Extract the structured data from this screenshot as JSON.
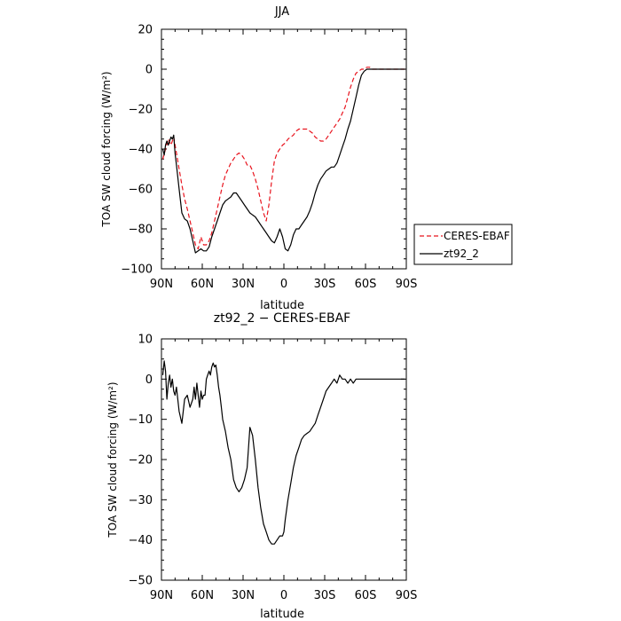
{
  "chart_data": [
    {
      "type": "line",
      "title": "JJA",
      "xlabel": "latitude",
      "ylabel": "TOA SW cloud forcing (W/m²)",
      "xlim": [
        90,
        -90
      ],
      "ylim": [
        -100,
        20
      ],
      "x_ticks": [
        90,
        60,
        30,
        0,
        -30,
        -60,
        -90
      ],
      "x_tick_labels": [
        "90N",
        "60N",
        "30N",
        "0",
        "30S",
        "60S",
        "90S"
      ],
      "y_ticks": [
        20,
        0,
        -20,
        -40,
        -60,
        -80,
        -100
      ],
      "y_tick_labels": [
        "20",
        "0",
        "−20",
        "−40",
        "−60",
        "−80",
        "−100"
      ],
      "legend_position": "right",
      "series": [
        {
          "name": "CERES-EBAF",
          "color": "#e8141e",
          "dash": "dashed",
          "x": [
            89,
            87,
            85,
            83,
            81,
            79,
            77,
            75,
            73,
            71,
            69,
            67,
            65,
            63,
            61,
            59,
            57,
            55,
            53,
            51,
            49,
            47,
            45,
            43,
            41,
            39,
            37,
            35,
            33,
            31,
            29,
            27,
            25,
            23,
            21,
            19,
            17,
            15,
            13,
            11,
            9,
            7,
            5,
            3,
            1,
            -1,
            -3,
            -5,
            -7,
            -9,
            -11,
            -13,
            -15,
            -17,
            -19,
            -21,
            -23,
            -25,
            -27,
            -29,
            -31,
            -33,
            -35,
            -37,
            -39,
            -41,
            -43,
            -45,
            -47,
            -49,
            -51,
            -53,
            -55,
            -57,
            -59,
            -61,
            -63,
            -65,
            -67,
            -69,
            -71,
            -73,
            -75,
            -77,
            -79,
            -81,
            -83,
            -85,
            -87,
            -89
          ],
          "y": [
            -45,
            -40,
            -35,
            -38,
            -34,
            -42,
            -50,
            -58,
            -65,
            -70,
            -76,
            -82,
            -88,
            -90,
            -84,
            -88,
            -88,
            -86,
            -82,
            -76,
            -70,
            -64,
            -58,
            -53,
            -50,
            -47,
            -45,
            -43,
            -42,
            -43,
            -45,
            -48,
            -48,
            -51,
            -55,
            -60,
            -66,
            -72,
            -76,
            -68,
            -56,
            -46,
            -42,
            -40,
            -38,
            -37,
            -35,
            -34,
            -33,
            -31,
            -30,
            -30,
            -30,
            -30,
            -31,
            -32,
            -34,
            -35,
            -36,
            -36,
            -35,
            -33,
            -31,
            -29,
            -27,
            -25,
            -22,
            -19,
            -14,
            -9,
            -5,
            -2,
            -1,
            0,
            0,
            1,
            1,
            0,
            0,
            0,
            0,
            0,
            0,
            0,
            0,
            0,
            0,
            0,
            0,
            0
          ]
        },
        {
          "name": "zt92_2",
          "color": "#000000",
          "dash": "solid",
          "x": [
            89,
            88,
            87,
            86,
            85,
            84,
            83,
            82,
            81,
            80,
            79,
            77,
            75,
            73,
            71,
            69,
            67,
            65,
            63,
            61,
            59,
            57,
            55,
            53,
            51,
            49,
            47,
            45,
            43,
            41,
            39,
            37,
            35,
            33,
            31,
            29,
            27,
            25,
            23,
            21,
            19,
            17,
            15,
            13,
            11,
            9,
            7,
            5,
            3,
            1,
            -1,
            -3,
            -5,
            -7,
            -9,
            -11,
            -13,
            -15,
            -17,
            -19,
            -21,
            -23,
            -25,
            -27,
            -29,
            -31,
            -33,
            -35,
            -37,
            -39,
            -41,
            -43,
            -45,
            -47,
            -49,
            -51,
            -53,
            -55,
            -57,
            -59,
            -61,
            -63,
            -65,
            -67,
            -69,
            -71,
            -73,
            -75,
            -77,
            -79,
            -81,
            -83,
            -85,
            -87,
            -89
          ],
          "y": [
            -40,
            -43,
            -38,
            -36,
            -38,
            -36,
            -34,
            -35,
            -33,
            -42,
            -48,
            -60,
            -72,
            -75,
            -76,
            -80,
            -86,
            -92,
            -91,
            -90,
            -91,
            -91,
            -89,
            -84,
            -80,
            -76,
            -72,
            -68,
            -66,
            -65,
            -64,
            -62,
            -62,
            -64,
            -66,
            -68,
            -70,
            -72,
            -73,
            -74,
            -76,
            -78,
            -80,
            -82,
            -84,
            -86,
            -87,
            -84,
            -80,
            -84,
            -90,
            -91,
            -88,
            -83,
            -80,
            -80,
            -78,
            -76,
            -74,
            -71,
            -67,
            -62,
            -58,
            -55,
            -53,
            -51,
            -50,
            -49,
            -49,
            -47,
            -43,
            -39,
            -35,
            -30,
            -26,
            -20,
            -14,
            -8,
            -3,
            -1,
            0,
            0,
            0,
            0,
            0,
            0,
            0,
            0,
            0,
            0,
            0,
            0,
            0,
            0,
            0
          ]
        }
      ]
    },
    {
      "type": "line",
      "title": "zt92_2 − CERES-EBAF",
      "xlabel": "latitude",
      "ylabel": "TOA SW cloud forcing (W/m²)",
      "xlim": [
        90,
        -90
      ],
      "ylim": [
        -50,
        10
      ],
      "x_ticks": [
        90,
        60,
        30,
        0,
        -30,
        -60,
        -90
      ],
      "x_tick_labels": [
        "90N",
        "60N",
        "30N",
        "0",
        "30S",
        "60S",
        "90S"
      ],
      "y_ticks": [
        10,
        0,
        -10,
        -20,
        -30,
        -40,
        -50
      ],
      "y_tick_labels": [
        "10",
        "0",
        "−10",
        "−20",
        "−30",
        "−40",
        "−50"
      ],
      "series": [
        {
          "name": "",
          "color": "#000000",
          "dash": "solid",
          "x": [
            89,
            88,
            87,
            86,
            85,
            84,
            83,
            82,
            81,
            80,
            79,
            77,
            75,
            73,
            71,
            69,
            67,
            66,
            65,
            64,
            63,
            62,
            61,
            60,
            59,
            58,
            57,
            56,
            55,
            54,
            53,
            52,
            51,
            50,
            49,
            48,
            47,
            46,
            45,
            43,
            41,
            39,
            37,
            35,
            33,
            31,
            29,
            27,
            25,
            23,
            21,
            19,
            17,
            15,
            13,
            11,
            9,
            7,
            5,
            3,
            1,
            0,
            -1,
            -3,
            -5,
            -7,
            -9,
            -11,
            -13,
            -15,
            -17,
            -19,
            -21,
            -23,
            -25,
            -27,
            -29,
            -31,
            -33,
            -35,
            -37,
            -39,
            -41,
            -43,
            -45,
            -47,
            -49,
            -51,
            -53,
            -55,
            -57,
            -59,
            -61,
            -63,
            -65,
            -67,
            -69,
            -71,
            -73,
            -75,
            -77,
            -79,
            -81,
            -83,
            -85,
            -87,
            -89
          ],
          "y": [
            1,
            4.5,
            2,
            -5,
            -1,
            1,
            -2,
            0,
            -3,
            -4,
            -2,
            -8,
            -11,
            -5,
            -4,
            -7,
            -5,
            -2,
            -5,
            -1,
            -4,
            -7,
            -3,
            -5,
            -4,
            -4,
            0,
            1,
            2,
            1,
            3,
            4,
            3,
            3.5,
            1,
            -2,
            -4,
            -7,
            -10,
            -13,
            -17,
            -20,
            -25,
            -27,
            -28,
            -27,
            -25,
            -22,
            -12,
            -14,
            -20,
            -27,
            -32,
            -36,
            -38,
            -40,
            -41,
            -41,
            -40,
            -39,
            -39,
            -38,
            -35,
            -30,
            -26,
            -22,
            -19,
            -17,
            -15,
            -14,
            -13.5,
            -13,
            -12,
            -11,
            -9,
            -7,
            -5,
            -3,
            -2,
            -1,
            0,
            -1,
            1,
            0,
            0,
            -1,
            0,
            -1,
            0,
            0,
            0,
            0,
            0,
            0,
            0,
            0,
            0,
            0,
            0,
            0,
            0,
            0,
            0,
            0,
            0,
            0,
            0
          ]
        }
      ]
    }
  ]
}
